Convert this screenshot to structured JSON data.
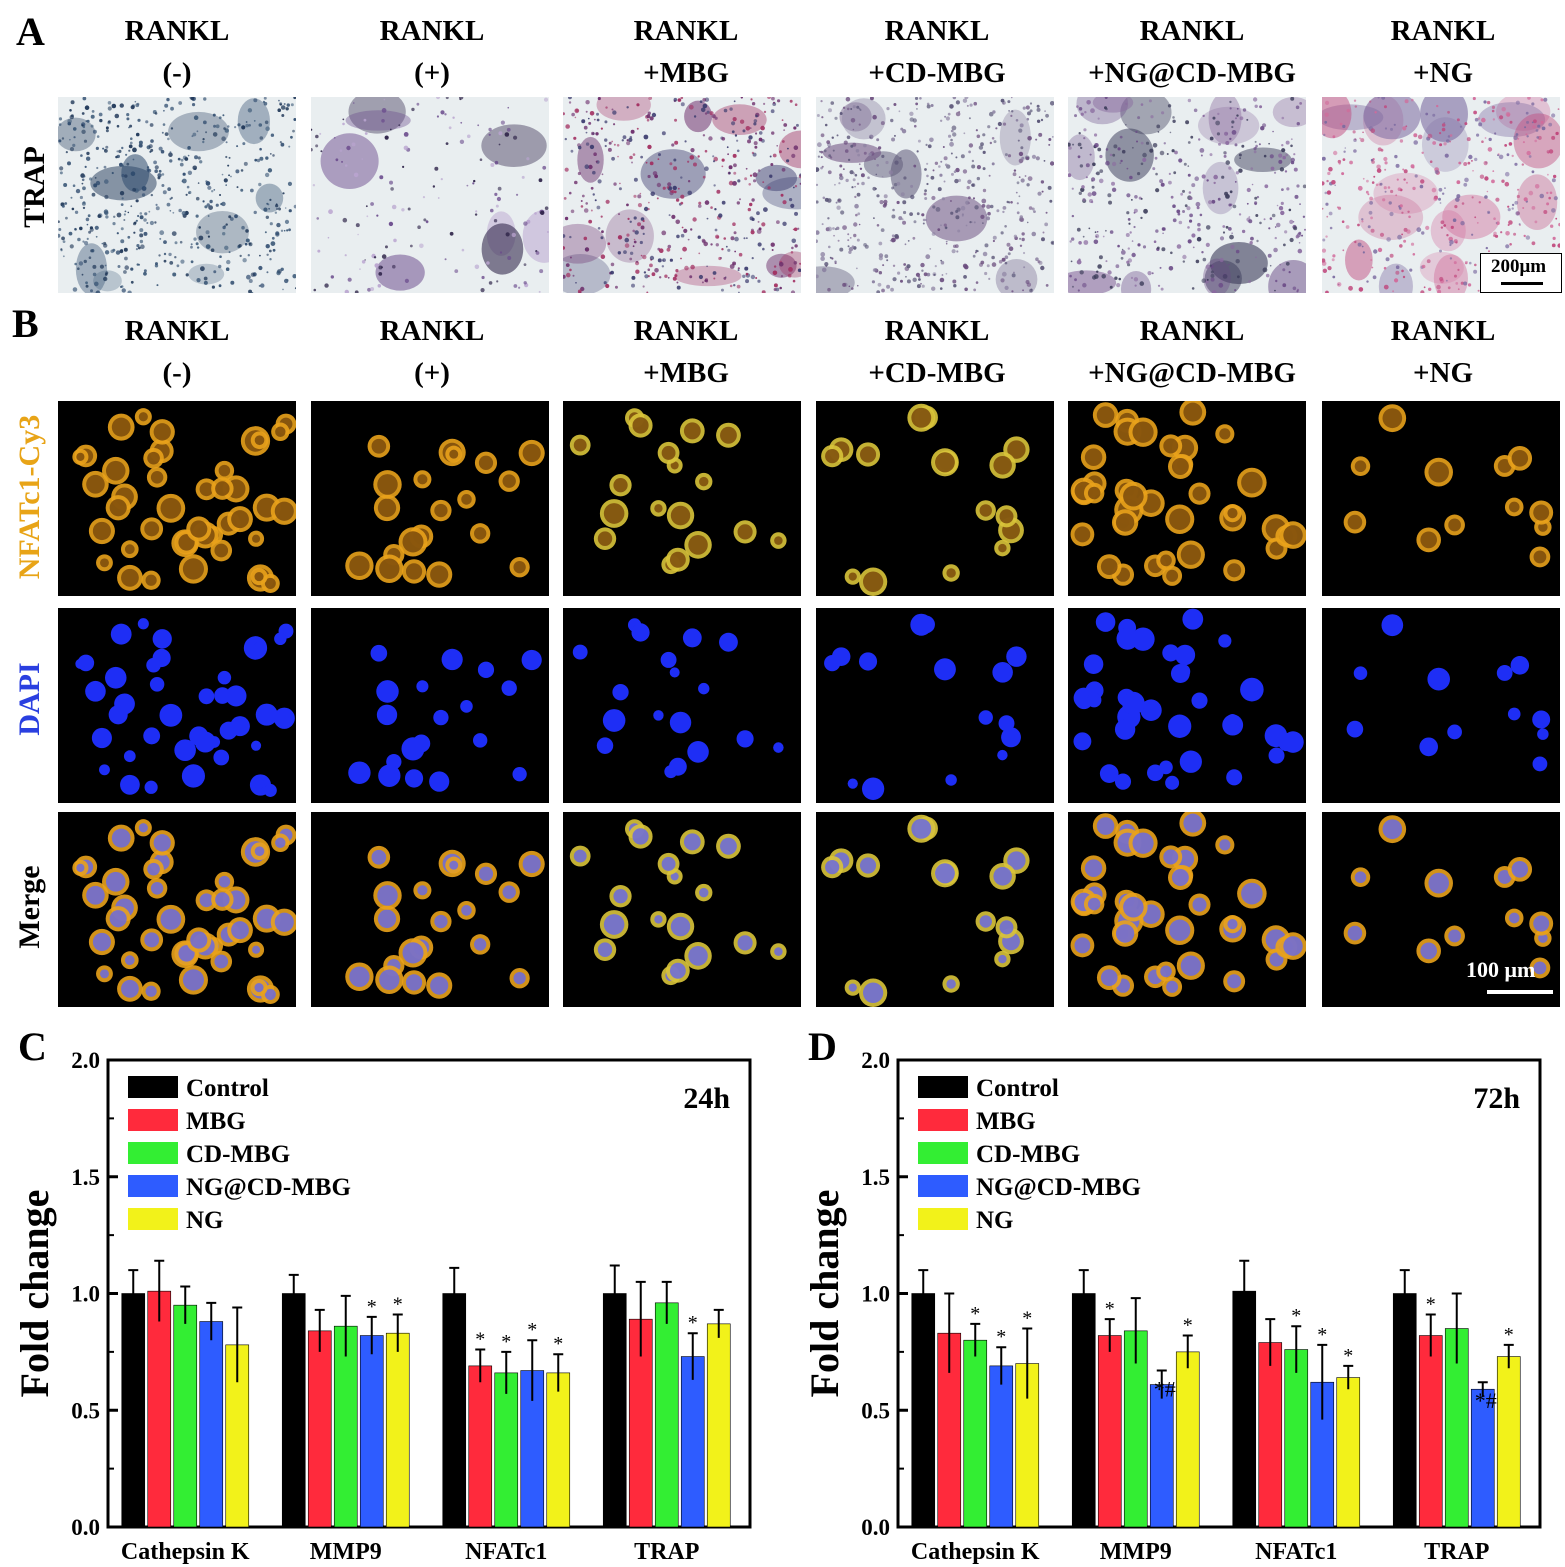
{
  "panel_a": {
    "letter": "A",
    "row_label": "TRAP",
    "columns": [
      "RANKL\n(-)",
      "RANKL\n(+)",
      "RANKL\n+MBG",
      "RANKL\n+CD-MBG",
      "RANKL\n+NG@CD-MBG",
      "RANKL\n+NG"
    ],
    "scale_bar": "200μm"
  },
  "panel_b": {
    "letter": "B",
    "columns": [
      "RANKL\n(-)",
      "RANKL\n(+)",
      "RANKL\n+MBG",
      "RANKL\n+CD-MBG",
      "RANKL\n+NG@CD-MBG",
      "RANKL\n+NG"
    ],
    "row_labels": [
      "NFATc1-Cy3",
      "DAPI",
      "Merge"
    ],
    "row_label_colors": [
      "#e8a417",
      "#2a3fe0",
      "#000000"
    ],
    "scale_bar": "100 μm"
  },
  "colors": {
    "Control": "#000000",
    "MBG": "#ff2a3c",
    "CD-MBG": "#33ee33",
    "NG@CD-MBG": "#2e5cff",
    "NG": "#f2f21a",
    "trap_bg": "#e9eef0",
    "fluor_bg": "#000000",
    "cy3": "#e9a21b",
    "dapi": "#1e2ef5"
  },
  "chart_data": [
    {
      "panel": "C",
      "type": "bar",
      "annotation": "24h",
      "ylabel": "Fold change",
      "ylim": [
        0,
        2.0
      ],
      "yticks": [
        "0.0",
        "0.5",
        "1.0",
        "1.5",
        "2.0"
      ],
      "categories": [
        "Cathepsin K",
        "MMP9",
        "NFATc1",
        "TRAP"
      ],
      "legend_position": "top-left",
      "series": [
        {
          "name": "Control",
          "values": [
            1.0,
            1.0,
            1.0,
            1.0
          ],
          "errors": [
            0.1,
            0.08,
            0.11,
            0.12
          ],
          "marks": [
            "",
            "",
            "",
            ""
          ]
        },
        {
          "name": "MBG",
          "values": [
            1.01,
            0.84,
            0.69,
            0.89
          ],
          "errors": [
            0.13,
            0.09,
            0.07,
            0.16
          ],
          "marks": [
            "",
            "",
            "*",
            ""
          ]
        },
        {
          "name": "CD-MBG",
          "values": [
            0.95,
            0.86,
            0.66,
            0.96
          ],
          "errors": [
            0.08,
            0.13,
            0.09,
            0.09
          ],
          "marks": [
            "",
            "",
            "*",
            ""
          ]
        },
        {
          "name": "NG@CD-MBG",
          "values": [
            0.88,
            0.82,
            0.67,
            0.73
          ],
          "errors": [
            0.08,
            0.08,
            0.13,
            0.1
          ],
          "marks": [
            "",
            "*",
            "*",
            "*"
          ]
        },
        {
          "name": "NG",
          "values": [
            0.78,
            0.83,
            0.66,
            0.87
          ],
          "errors": [
            0.16,
            0.08,
            0.08,
            0.06
          ],
          "marks": [
            "",
            "*",
            "*",
            ""
          ]
        }
      ]
    },
    {
      "panel": "D",
      "type": "bar",
      "annotation": "72h",
      "ylabel": "Fold change",
      "ylim": [
        0,
        2.0
      ],
      "yticks": [
        "0.0",
        "0.5",
        "1.0",
        "1.5",
        "2.0"
      ],
      "categories": [
        "Cathepsin K",
        "MMP9",
        "NFATc1",
        "TRAP"
      ],
      "legend_position": "top-left",
      "series": [
        {
          "name": "Control",
          "values": [
            1.0,
            1.0,
            1.01,
            1.0
          ],
          "errors": [
            0.1,
            0.1,
            0.13,
            0.1
          ],
          "marks": [
            "",
            "",
            "",
            ""
          ]
        },
        {
          "name": "MBG",
          "values": [
            0.83,
            0.82,
            0.79,
            0.82
          ],
          "errors": [
            0.17,
            0.07,
            0.1,
            0.09
          ],
          "marks": [
            "",
            "*",
            "",
            "*"
          ]
        },
        {
          "name": "CD-MBG",
          "values": [
            0.8,
            0.84,
            0.76,
            0.85
          ],
          "errors": [
            0.07,
            0.14,
            0.1,
            0.15
          ],
          "marks": [
            "*",
            "",
            "*",
            ""
          ]
        },
        {
          "name": "NG@CD-MBG",
          "values": [
            0.69,
            0.61,
            0.62,
            0.59
          ],
          "errors": [
            0.08,
            0.06,
            0.16,
            0.03
          ],
          "marks": [
            "*",
            "*#",
            "*",
            "*#"
          ]
        },
        {
          "name": "NG",
          "values": [
            0.7,
            0.75,
            0.64,
            0.73
          ],
          "errors": [
            0.15,
            0.07,
            0.05,
            0.05
          ],
          "marks": [
            "*",
            "*",
            "*",
            "*"
          ]
        }
      ]
    }
  ]
}
